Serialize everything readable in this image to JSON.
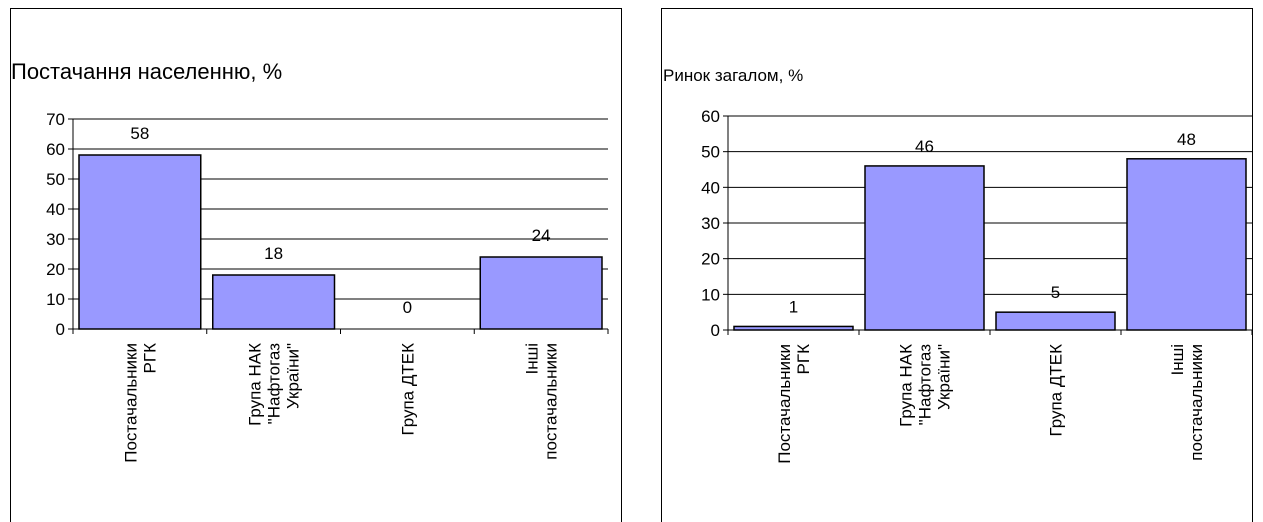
{
  "colors": {
    "bar": "#9999ff",
    "bar_stroke": "#000000",
    "axis": "#000000",
    "grid": "#000000"
  },
  "chart_data": [
    {
      "type": "bar",
      "title": "Постачання населенню, %",
      "xlabel": "",
      "ylabel": "",
      "categories": [
        "Постачальники РГК",
        "Група НАК \"Нафтогаз України\"",
        "Група ДТЕК",
        "Інші постачальники"
      ],
      "category_label_lines": [
        [
          "Постачальники",
          "РГК"
        ],
        [
          "Група НАК",
          "\"Нафтогаз",
          "України\""
        ],
        [
          "Група ДТЕК"
        ],
        [
          "Інші",
          "постачальники"
        ]
      ],
      "values": [
        58,
        18,
        0,
        24
      ],
      "data_labels": [
        "58",
        "18",
        "0",
        "24"
      ],
      "ylim": [
        0,
        70
      ],
      "yticks": [
        0,
        10,
        20,
        30,
        40,
        50,
        60,
        70
      ],
      "grid": true,
      "legend": "none"
    },
    {
      "type": "bar",
      "title": "Ринок загалом, %",
      "xlabel": "",
      "ylabel": "",
      "categories": [
        "Постачальники РГК",
        "Група НАК \"Нафтогаз України\"",
        "Група ДТЕК",
        "Інші постачальники"
      ],
      "category_label_lines": [
        [
          "Постачальники",
          "РГК"
        ],
        [
          "Група НАК",
          "\"Нафтогаз",
          "України\""
        ],
        [
          "Група ДТЕК"
        ],
        [
          "Інші",
          "постачальники"
        ]
      ],
      "values": [
        1,
        46,
        5,
        48
      ],
      "data_labels": [
        "1",
        "46",
        "5",
        "48"
      ],
      "ylim": [
        0,
        60
      ],
      "yticks": [
        0,
        10,
        20,
        30,
        40,
        50,
        60
      ],
      "grid": true,
      "legend": "none"
    }
  ]
}
